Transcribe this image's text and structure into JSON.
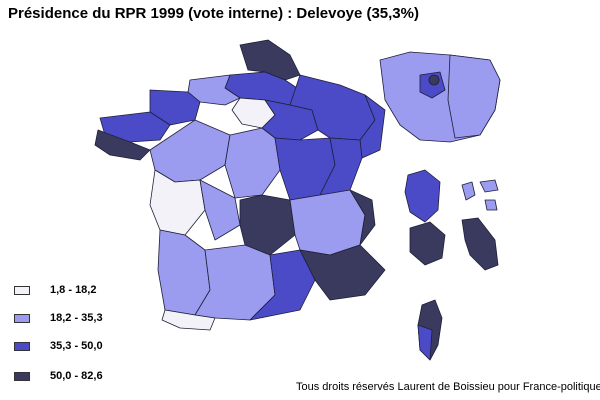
{
  "title": "Présidence du RPR 1999 (vote interne) : Delevoye (35,3%)",
  "legend": [
    {
      "label": "1,8 - 18,2",
      "color": "#f2f2f8"
    },
    {
      "label": "18,2 - 35,3",
      "color": "#9b9bef"
    },
    {
      "label": "35,3 - 50,0",
      "color": "#4b4bc8"
    },
    {
      "label": "50,0 - 82,6",
      "color": "#3a3a5e"
    }
  ],
  "credit": "Tous droits réservés Laurent de Boissieu pour France-politique.fr",
  "colors": {
    "border": "#1f1f3a",
    "sea": "#ffffff"
  }
}
